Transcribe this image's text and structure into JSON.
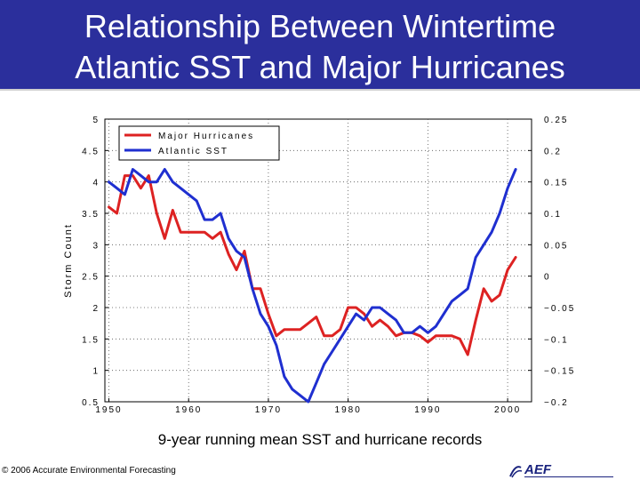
{
  "slide": {
    "title_line1": "Relationship Between Wintertime",
    "title_line2": "Atlantic SST and Major Hurricanes",
    "caption": "9-year running mean SST and hurricane records",
    "footer": "© 2006 Accurate Environmental Forecasting",
    "logo_text": "AEF",
    "colors": {
      "banner": "#2b2f9c",
      "hurricanes": "#dd2222",
      "sst": "#1f2fd0"
    }
  },
  "chart_data": {
    "type": "line",
    "title": "",
    "xlabel": "",
    "ylabel": "Storm Count",
    "y2label": "",
    "xlim": [
      1949.5,
      2003
    ],
    "ylim": [
      0.5,
      5
    ],
    "y2lim": [
      -0.2,
      0.25
    ],
    "grid": true,
    "legend_placement": "top-left",
    "x_ticks": [
      1950,
      1960,
      1970,
      1980,
      1990,
      2000
    ],
    "x_tick_labels": [
      "1950",
      "1960",
      "1970",
      "1980",
      "1990",
      "2000"
    ],
    "y_ticks": [
      0.5,
      1,
      1.5,
      2,
      2.5,
      3,
      3.5,
      4,
      4.5,
      5
    ],
    "y_tick_labels": [
      "0.5",
      "1",
      "1.5",
      "2",
      "2.5",
      "3",
      "3.5",
      "4",
      "4.5",
      "5"
    ],
    "y2_ticks": [
      -0.2,
      -0.15,
      -0.1,
      -0.05,
      0,
      0.05,
      0.1,
      0.15,
      0.2,
      0.25
    ],
    "y2_tick_labels": [
      "−0.2",
      "−0.15",
      "−0.1",
      "−0.05",
      "0",
      "0.05",
      "0.1",
      "0.15",
      "0.2",
      "0.25"
    ],
    "series": [
      {
        "name": "Major Hurricanes",
        "axis": "left",
        "color": "#dd2222",
        "x": [
          1950,
          1951,
          1952,
          1953,
          1954,
          1955,
          1956,
          1957,
          1958,
          1959,
          1960,
          1961,
          1962,
          1963,
          1964,
          1965,
          1966,
          1967,
          1968,
          1969,
          1970,
          1971,
          1972,
          1973,
          1974,
          1975,
          1976,
          1977,
          1978,
          1979,
          1980,
          1981,
          1982,
          1983,
          1984,
          1985,
          1986,
          1987,
          1988,
          1989,
          1990,
          1991,
          1992,
          1993,
          1994,
          1995,
          1996,
          1997,
          1998,
          1999,
          2000,
          2001
        ],
        "values": [
          3.6,
          3.5,
          4.1,
          4.1,
          3.9,
          4.1,
          3.5,
          3.1,
          3.55,
          3.2,
          3.2,
          3.2,
          3.2,
          3.1,
          3.2,
          2.85,
          2.6,
          2.9,
          2.3,
          2.3,
          1.9,
          1.55,
          1.65,
          1.65,
          1.65,
          1.75,
          1.85,
          1.55,
          1.55,
          1.65,
          2.0,
          2.0,
          1.9,
          1.7,
          1.8,
          1.7,
          1.55,
          1.6,
          1.6,
          1.55,
          1.45,
          1.55,
          1.55,
          1.55,
          1.5,
          1.25,
          1.8,
          2.3,
          2.1,
          2.2,
          2.6,
          2.8
        ]
      },
      {
        "name": "Atlantic SST",
        "axis": "right",
        "color": "#1f2fd0",
        "x": [
          1950,
          1951,
          1952,
          1953,
          1954,
          1955,
          1956,
          1957,
          1958,
          1959,
          1960,
          1961,
          1962,
          1963,
          1964,
          1965,
          1966,
          1967,
          1968,
          1969,
          1970,
          1971,
          1972,
          1973,
          1974,
          1975,
          1976,
          1977,
          1978,
          1979,
          1980,
          1981,
          1982,
          1983,
          1984,
          1985,
          1986,
          1987,
          1988,
          1989,
          1990,
          1991,
          1992,
          1993,
          1994,
          1995,
          1996,
          1997,
          1998,
          1999,
          2000,
          2001
        ],
        "values": [
          0.15,
          0.14,
          0.13,
          0.17,
          0.16,
          0.15,
          0.15,
          0.17,
          0.15,
          0.14,
          0.13,
          0.12,
          0.09,
          0.09,
          0.1,
          0.06,
          0.04,
          0.03,
          -0.02,
          -0.06,
          -0.08,
          -0.11,
          -0.16,
          -0.18,
          -0.19,
          -0.2,
          -0.17,
          -0.14,
          -0.12,
          -0.1,
          -0.08,
          -0.06,
          -0.07,
          -0.05,
          -0.05,
          -0.06,
          -0.07,
          -0.09,
          -0.09,
          -0.08,
          -0.09,
          -0.08,
          -0.06,
          -0.04,
          -0.03,
          -0.02,
          0.03,
          0.05,
          0.07,
          0.1,
          0.14,
          0.17
        ]
      }
    ]
  }
}
